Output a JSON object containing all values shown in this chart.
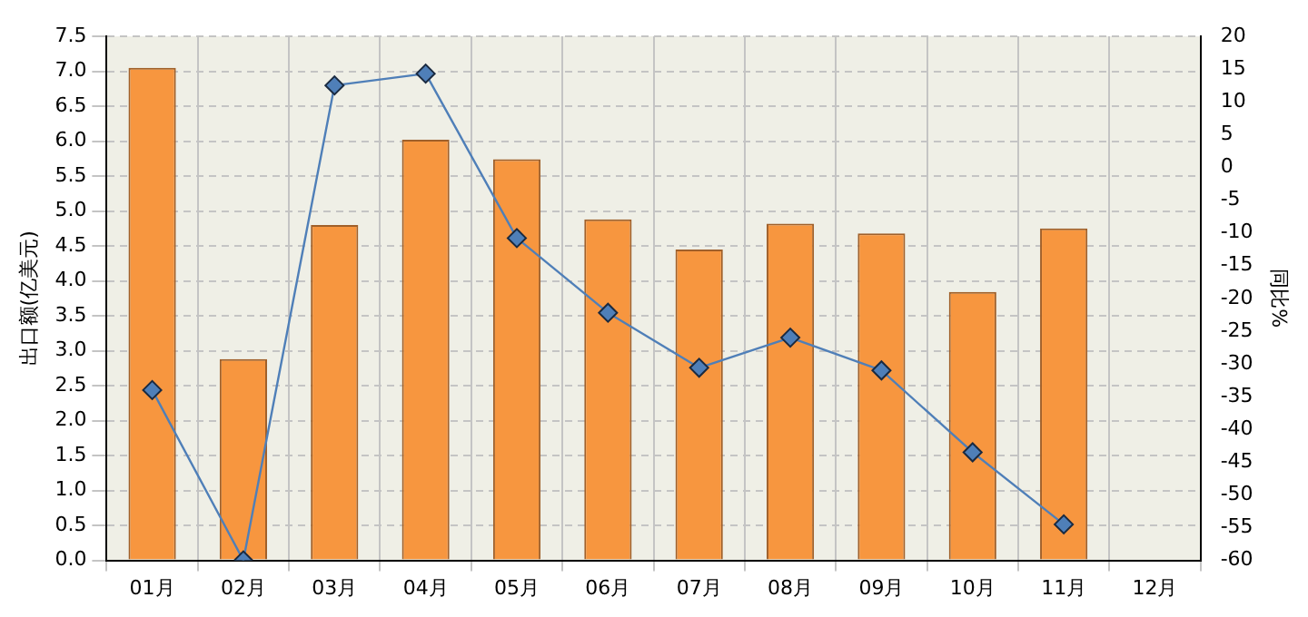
{
  "chart_data": {
    "type": "bar",
    "ylabel": "出口额(亿美元)",
    "y2label": "同比%",
    "categories": [
      "01月",
      "02月",
      "03月",
      "04月",
      "05月",
      "06月",
      "07月",
      "08月",
      "09月",
      "10月",
      "11月",
      "12月"
    ],
    "series": [
      {
        "color": "#f7963f",
        "values": [
          7.05,
          2.88,
          4.8,
          6.02,
          5.74,
          4.88,
          4.45,
          4.82,
          4.68,
          3.84,
          4.75,
          null
        ]
      },
      {
        "type": "line",
        "axis": "y2",
        "color": "#4f7fb8",
        "marker": "diamond",
        "values": [
          -34,
          -60,
          12.5,
          14.3,
          -10.8,
          -22.2,
          -30.6,
          -26,
          -31,
          -43.5,
          -54.5,
          null
        ]
      }
    ],
    "ylim": [
      0,
      7.5
    ],
    "yticks": [
      {
        "value": 0,
        "label": "0.0"
      },
      0.5,
      {
        "value": 1,
        "label": "1.0"
      },
      1.5,
      {
        "value": 2,
        "label": "2.0"
      },
      2.5,
      {
        "value": 3,
        "label": "3.0"
      },
      3.5,
      {
        "value": 4,
        "label": "4.0"
      },
      4.5,
      {
        "value": 5,
        "label": "5.0"
      },
      5.5,
      {
        "value": 6,
        "label": "6.0"
      },
      6.5,
      {
        "value": 7,
        "label": "7.0"
      },
      7.5
    ],
    "y2lim": [
      -60,
      20
    ],
    "y2ticks": [
      -60,
      -55,
      -50,
      -45,
      -40,
      -35,
      -30,
      -25,
      -20,
      -15,
      -10,
      -5,
      0,
      5,
      10,
      15,
      20
    ],
    "grid": true,
    "legend": false
  }
}
